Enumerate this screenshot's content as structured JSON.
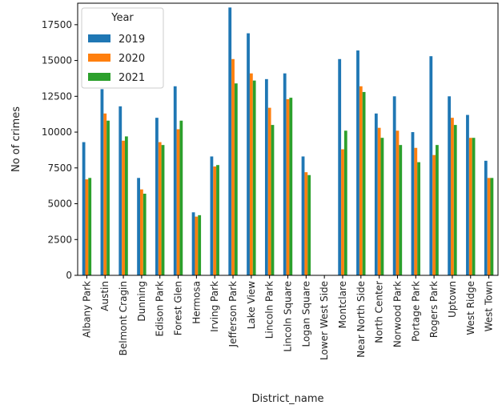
{
  "chart_data": {
    "type": "bar",
    "xlabel": "District_name",
    "ylabel": "No of crimes",
    "ylim": [
      0,
      19000
    ],
    "yticks": [
      0,
      2500,
      5000,
      7500,
      10000,
      12500,
      15000,
      17500
    ],
    "legend": {
      "title": "Year",
      "placement": "top-left"
    },
    "categories": [
      "Albany Park",
      "Austin",
      "Belmont Cragin",
      "Dunning",
      "Edison Park",
      "Forest Glen",
      "Hermosa",
      "Irving Park",
      "Jefferson Park",
      "Lake View",
      "Lincoln Park",
      "Lincoln Square",
      "Logan Square",
      "Lower West Side",
      "Montclare",
      "Near North Side",
      "North Center",
      "Norwood Park",
      "Portage Park",
      "Rogers Park",
      "Uptown",
      "West Ridge",
      "West Town"
    ],
    "series": [
      {
        "name": "2019",
        "color": "#1f77b4",
        "values": [
          9300,
          13000,
          11800,
          6800,
          11000,
          13200,
          4400,
          8300,
          18700,
          16900,
          13700,
          14100,
          8300,
          0,
          15100,
          15700,
          11300,
          12500,
          10000,
          15300,
          12500,
          11200,
          8000
        ]
      },
      {
        "name": "2020",
        "color": "#ff7f0e",
        "values": [
          6700,
          11300,
          9400,
          6000,
          9300,
          10200,
          4100,
          7600,
          15100,
          14100,
          11700,
          12300,
          7200,
          0,
          8800,
          13200,
          10300,
          10100,
          8900,
          8400,
          11000,
          9600,
          6800
        ]
      },
      {
        "name": "2021",
        "color": "#2ca02c",
        "values": [
          6800,
          10800,
          9700,
          5700,
          9100,
          10800,
          4200,
          7700,
          13400,
          13600,
          10500,
          12400,
          7000,
          0,
          10100,
          12800,
          9600,
          9100,
          7900,
          9100,
          10500,
          9600,
          6800
        ]
      }
    ]
  }
}
